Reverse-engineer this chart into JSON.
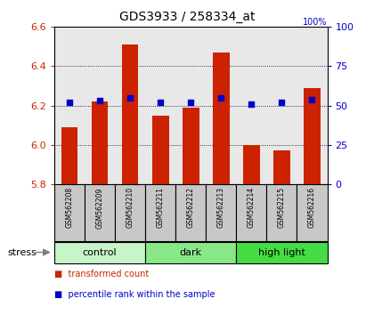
{
  "title": "GDS3933 / 258334_at",
  "samples": [
    "GSM562208",
    "GSM562209",
    "GSM562210",
    "GSM562211",
    "GSM562212",
    "GSM562213",
    "GSM562214",
    "GSM562215",
    "GSM562216"
  ],
  "transformed_counts": [
    6.09,
    6.22,
    6.51,
    6.15,
    6.19,
    6.47,
    6.0,
    5.97,
    6.29
  ],
  "percentile_ranks": [
    52,
    53,
    55,
    52,
    52,
    55,
    51,
    52,
    54
  ],
  "ylim_left": [
    5.8,
    6.6
  ],
  "ylim_right": [
    0,
    100
  ],
  "yticks_left": [
    5.8,
    6.0,
    6.2,
    6.4,
    6.6
  ],
  "yticks_right": [
    0,
    25,
    50,
    75,
    100
  ],
  "groups": [
    {
      "label": "control",
      "color": "#c8f5c8",
      "start": 0,
      "end": 3
    },
    {
      "label": "dark",
      "color": "#88e888",
      "start": 3,
      "end": 6
    },
    {
      "label": "high light",
      "color": "#44dd44",
      "start": 6,
      "end": 9
    }
  ],
  "bar_color": "#cc2200",
  "dot_color": "#0000cc",
  "bar_width": 0.55,
  "stress_label": "stress",
  "legend_items": [
    {
      "label": "transformed count",
      "color": "#cc2200"
    },
    {
      "label": "percentile rank within the sample",
      "color": "#0000cc"
    }
  ],
  "plot_bg_color": "#e8e8e8",
  "left_tick_color": "#cc2200",
  "right_tick_color": "#0000cc",
  "grid_color": "black",
  "label_bg_color": "#c8c8c8"
}
